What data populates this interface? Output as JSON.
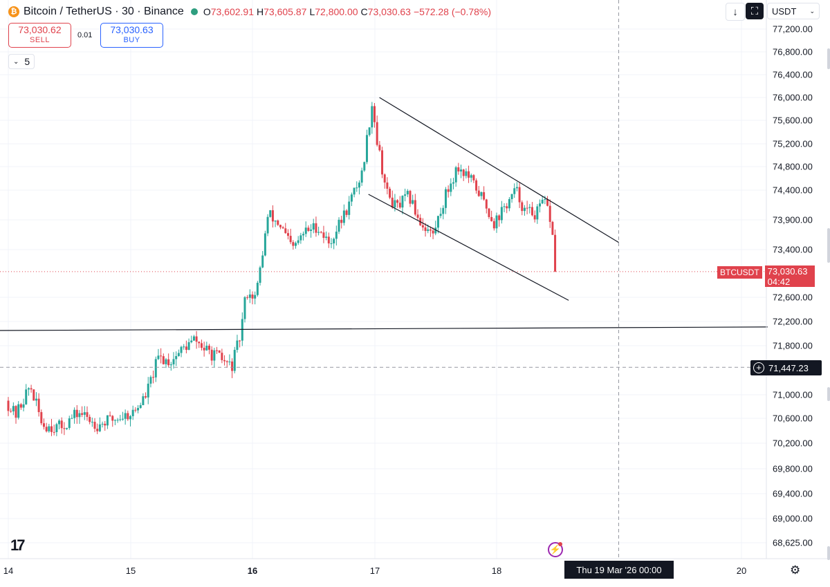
{
  "header": {
    "symbol": "Bitcoin / TetherUS · 30 · Binance",
    "logo_glyph": "₿",
    "open_label": "O",
    "open": "73,602.91",
    "high_label": "H",
    "high": "73,605.87",
    "low_label": "L",
    "low": "72,800.00",
    "close_label": "C",
    "close": "73,030.63",
    "change": "−572.28 (−0.78%)"
  },
  "trade": {
    "sell_price": "73,030.62",
    "sell_label": "SELL",
    "spread": "0.01",
    "buy_price": "73,030.63",
    "buy_label": "BUY"
  },
  "interval": {
    "value": "5",
    "chevron": "⌄"
  },
  "toolbar": {
    "down_glyph": "↓",
    "fullscreen_glyph": "⛶",
    "currency": "USDT",
    "currency_chevron": "⌄"
  },
  "price_tag": {
    "symbol": "BTCUSDT",
    "price": "73,030.63",
    "countdown": "04:42"
  },
  "crosshair": {
    "price": "71,447.23",
    "time": "Thu 19 Mar '26   00:00",
    "plus_glyph": "+"
  },
  "footer": {
    "tv_logo": "17",
    "flash_glyph": "⚡",
    "settings_glyph": "⚙"
  },
  "colors": {
    "up": "#26a69a",
    "down": "#e0424c",
    "text": "#131722",
    "grid": "#f0f3fa"
  },
  "chart_data": {
    "type": "candlestick",
    "title": "Bitcoin / TetherUS · 30 · Binance",
    "y_axis_labels": [
      "77,200.00",
      "76,800.00",
      "76,400.00",
      "76,000.00",
      "75,600.00",
      "75,200.00",
      "74,800.00",
      "74,400.00",
      "73,900.00",
      "73,400.00",
      "72,600.00",
      "72,200.00",
      "71,800.00",
      "71,000.00",
      "70,600.00",
      "70,200.00",
      "69,800.00",
      "69,400.00",
      "69,000.00",
      "68,625.00"
    ],
    "x_axis_labels": [
      {
        "text": "14",
        "bold": false
      },
      {
        "text": "15",
        "bold": false
      },
      {
        "text": "16",
        "bold": true
      },
      {
        "text": "17",
        "bold": false
      },
      {
        "text": "18",
        "bold": false
      },
      {
        "text": "20",
        "bold": false
      }
    ],
    "ylim": [
      68625,
      77200
    ],
    "x_units": "day of March 2026",
    "xlim": [
      14,
      20.14
    ],
    "candle_interval": "30",
    "waypoints": [
      [
        14.0,
        70900
      ],
      [
        14.08,
        70650
      ],
      [
        14.2,
        71150
      ],
      [
        14.3,
        70500
      ],
      [
        14.45,
        70450
      ],
      [
        14.6,
        70700
      ],
      [
        14.75,
        70500
      ],
      [
        14.9,
        70600
      ],
      [
        15.05,
        70700
      ],
      [
        15.15,
        71000
      ],
      [
        15.25,
        71600
      ],
      [
        15.35,
        71550
      ],
      [
        15.45,
        71750
      ],
      [
        15.55,
        71900
      ],
      [
        15.65,
        71700
      ],
      [
        15.75,
        71600
      ],
      [
        15.85,
        71450
      ],
      [
        15.92,
        71950
      ],
      [
        15.97,
        72700
      ],
      [
        16.05,
        72600
      ],
      [
        16.15,
        74000
      ],
      [
        16.25,
        73800
      ],
      [
        16.35,
        73400
      ],
      [
        16.45,
        73700
      ],
      [
        16.55,
        73800
      ],
      [
        16.65,
        73500
      ],
      [
        16.75,
        73900
      ],
      [
        16.82,
        74200
      ],
      [
        16.92,
        74700
      ],
      [
        17.0,
        75900
      ],
      [
        17.05,
        75150
      ],
      [
        17.12,
        74350
      ],
      [
        17.2,
        74100
      ],
      [
        17.3,
        74300
      ],
      [
        17.4,
        73850
      ],
      [
        17.5,
        73650
      ],
      [
        17.6,
        74300
      ],
      [
        17.7,
        74800
      ],
      [
        17.78,
        74650
      ],
      [
        17.88,
        74350
      ],
      [
        18.0,
        73850
      ],
      [
        18.1,
        74150
      ],
      [
        18.18,
        74400
      ],
      [
        18.25,
        74050
      ],
      [
        18.35,
        74000
      ],
      [
        18.4,
        74200
      ],
      [
        18.45,
        74050
      ],
      [
        18.48,
        73600
      ],
      [
        18.495,
        73030
      ]
    ],
    "annotations": {
      "channel_upper": [
        [
          17.04,
          76000
        ],
        [
          19.0,
          73520
        ]
      ],
      "channel_lower": [
        [
          16.95,
          74330
        ],
        [
          18.59,
          72550
        ]
      ],
      "horizontal_line": [
        [
          13.8,
          72050
        ],
        [
          20.22,
          72110
        ]
      ],
      "crosshair": {
        "x": 19.0,
        "y": 71447.23
      },
      "last_price": 73030.63
    }
  }
}
